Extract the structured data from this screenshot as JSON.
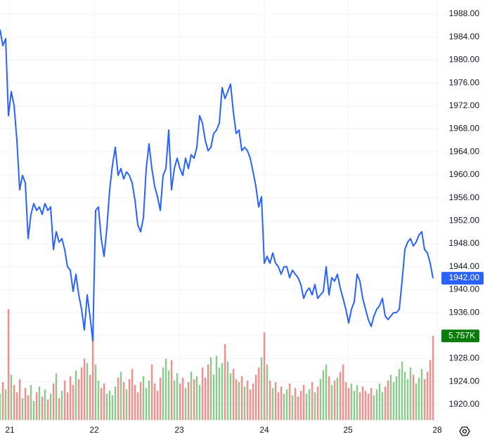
{
  "chart_data": {
    "type": "line",
    "x": [
      0,
      1,
      2,
      3,
      4,
      5,
      6,
      7,
      8,
      9,
      10,
      11,
      12,
      13,
      14,
      15,
      16,
      17,
      18,
      19,
      20,
      21,
      22,
      23,
      24,
      25,
      26,
      27,
      28,
      29,
      30,
      31,
      32,
      33,
      34,
      35,
      36,
      37,
      38,
      39,
      40,
      41,
      42,
      43,
      44,
      45,
      46,
      47,
      48,
      49,
      50,
      51,
      52,
      53,
      54,
      55,
      56,
      57,
      58,
      59,
      60,
      61,
      62,
      63,
      64,
      65,
      66,
      67,
      68,
      69,
      70,
      71,
      72,
      73,
      74,
      75,
      76,
      77,
      78,
      79,
      80,
      81,
      82,
      83,
      84,
      85,
      86,
      87,
      88,
      89,
      90,
      91,
      92,
      93,
      94,
      95,
      96,
      97,
      98,
      99,
      100,
      101,
      102,
      103,
      104,
      105,
      106,
      107,
      108,
      109,
      110,
      111,
      112,
      113,
      114,
      115,
      116,
      117,
      118,
      119,
      120,
      121,
      122,
      123,
      124,
      125,
      126,
      127,
      128,
      129,
      130,
      131,
      132,
      133,
      134,
      135,
      136,
      137,
      138,
      139,
      140,
      141,
      142,
      143,
      144,
      145,
      146,
      147,
      148,
      149,
      150,
      151,
      152,
      153,
      154
    ],
    "series": [
      {
        "color": "#2962ff",
        "values": [
          1985.3,
          1982.5,
          1983.7,
          1970.3,
          1974.5,
          1972.1,
          1966.0,
          1957.4,
          1959.9,
          1958.6,
          1948.9,
          1953.1,
          1955.0,
          1953.8,
          1954.4,
          1953.1,
          1955.0,
          1953.8,
          1954.4,
          1947.0,
          1950.1,
          1948.3,
          1948.9,
          1947.0,
          1944.0,
          1943.4,
          1939.7,
          1942.7,
          1939.1,
          1936.6,
          1933.0,
          1939.1,
          1935.4,
          1931.1,
          1953.8,
          1954.4,
          1948.9,
          1945.8,
          1950.7,
          1957.4,
          1961.7,
          1964.8,
          1959.9,
          1961.1,
          1959.3,
          1960.5,
          1959.9,
          1958.6,
          1955.6,
          1951.3,
          1950.1,
          1952.5,
          1961.1,
          1965.4,
          1961.1,
          1958.0,
          1956.2,
          1953.8,
          1959.9,
          1961.1,
          1967.8,
          1957.4,
          1961.1,
          1962.9,
          1961.1,
          1959.9,
          1962.9,
          1961.1,
          1963.5,
          1962.9,
          1964.8,
          1970.3,
          1969.0,
          1966.0,
          1964.2,
          1964.8,
          1967.2,
          1967.8,
          1969.0,
          1975.2,
          1973.3,
          1974.5,
          1975.8,
          1970.9,
          1967.2,
          1967.8,
          1964.2,
          1964.8,
          1964.2,
          1962.9,
          1960.5,
          1958.0,
          1954.4,
          1956.2,
          1944.6,
          1945.8,
          1944.6,
          1946.4,
          1944.6,
          1944.0,
          1942.7,
          1944.0,
          1944.0,
          1942.1,
          1943.4,
          1942.7,
          1942.1,
          1940.9,
          1938.5,
          1939.7,
          1940.3,
          1939.1,
          1940.9,
          1938.5,
          1939.1,
          1939.7,
          1944.0,
          1939.1,
          1942.1,
          1941.5,
          1942.7,
          1940.3,
          1938.5,
          1936.6,
          1934.2,
          1936.6,
          1937.9,
          1942.7,
          1941.5,
          1938.5,
          1936.6,
          1934.8,
          1933.6,
          1935.4,
          1936.6,
          1937.2,
          1938.5,
          1935.4,
          1934.8,
          1935.4,
          1936.0,
          1936.0,
          1936.6,
          1941.5,
          1947.0,
          1948.3,
          1948.9,
          1947.6,
          1948.3,
          1949.5,
          1950.1,
          1947.0,
          1946.4,
          1944.6,
          1942.0
        ],
        "value_labels": {
          "154": "1942.00"
        }
      }
    ],
    "volume": {
      "up_color": "#4caf50",
      "down_color": "#ef5350",
      "label_color": "#0b7b0b",
      "values": [
        1800,
        2600,
        2100,
        7600,
        3100,
        2400,
        1900,
        2800,
        1500,
        2200,
        1700,
        2400,
        1300,
        1900,
        2300,
        1600,
        2100,
        1400,
        1800,
        2500,
        3200,
        1500,
        2000,
        2700,
        1900,
        3000,
        2400,
        3400,
        2800,
        3600,
        4200,
        3900,
        3100,
        5900,
        3800,
        2700,
        2200,
        2500,
        1800,
        2000,
        1700,
        2300,
        2900,
        3300,
        2600,
        2100,
        2800,
        3500,
        2400,
        1900,
        2600,
        3000,
        2200,
        2700,
        3800,
        2500,
        2000,
        2900,
        3600,
        4200,
        3400,
        4100,
        2700,
        3200,
        2500,
        2900,
        2200,
        2600,
        3300,
        2800,
        3000,
        2400,
        3600,
        2900,
        3800,
        4300,
        3100,
        4400,
        3600,
        3900,
        5200,
        4000,
        3200,
        3500,
        2800,
        2600,
        3000,
        2300,
        2700,
        2100,
        2500,
        3100,
        3600,
        4300,
        6000,
        3800,
        2700,
        2200,
        2600,
        1900,
        2300,
        1800,
        2100,
        2500,
        1700,
        2200,
        1600,
        2000,
        2400,
        1800,
        2100,
        2600,
        1900,
        2300,
        2800,
        3400,
        3800,
        3000,
        2400,
        2700,
        2900,
        3300,
        3800,
        2600,
        2200,
        2500,
        2000,
        2400,
        1900,
        2300,
        2000,
        1800,
        2200,
        1700,
        2100,
        2500,
        1900,
        2300,
        2700,
        3100,
        2600,
        3000,
        3500,
        4000,
        3300,
        2800,
        3600,
        3100,
        2500,
        2900,
        3500,
        2800,
        3300,
        4100,
        5757
      ],
      "value_labels": {
        "154": "5.757K"
      }
    },
    "xlim": [
      0,
      157
    ],
    "xticks": [
      {
        "value": 3.5,
        "label": "21"
      },
      {
        "value": 33.5,
        "label": "22"
      },
      {
        "value": 63.75,
        "label": "23"
      },
      {
        "value": 94,
        "label": "24"
      },
      {
        "value": 123.75,
        "label": "25"
      },
      {
        "value": 155.5,
        "label": "28"
      }
    ],
    "ylim": [
      1917.3,
      1990.45
    ],
    "yticks": [
      {
        "value": 1920,
        "label": "1920.00"
      },
      {
        "value": 1924,
        "label": "1924.00"
      },
      {
        "value": 1928,
        "label": "1928.00"
      },
      {
        "value": 1932,
        "label": "1932.00"
      },
      {
        "value": 1936,
        "label": "1936.00"
      },
      {
        "value": 1940,
        "label": "1940.00"
      },
      {
        "value": 1944,
        "label": "1944.00"
      },
      {
        "value": 1948,
        "label": "1948.00"
      },
      {
        "value": 1952,
        "label": "1952.00"
      },
      {
        "value": 1956,
        "label": "1956.00"
      },
      {
        "value": 1960,
        "label": "1960.00"
      },
      {
        "value": 1964,
        "label": "1964.00"
      },
      {
        "value": 1968,
        "label": "1968.00"
      },
      {
        "value": 1972,
        "label": "1972.00"
      },
      {
        "value": 1976,
        "label": "1976.00"
      },
      {
        "value": 1980,
        "label": "1980.00"
      },
      {
        "value": 1984,
        "label": "1984.00"
      },
      {
        "value": 1988,
        "label": "1988.00"
      }
    ],
    "y2lim": [
      0,
      12500
    ],
    "grid": true
  }
}
